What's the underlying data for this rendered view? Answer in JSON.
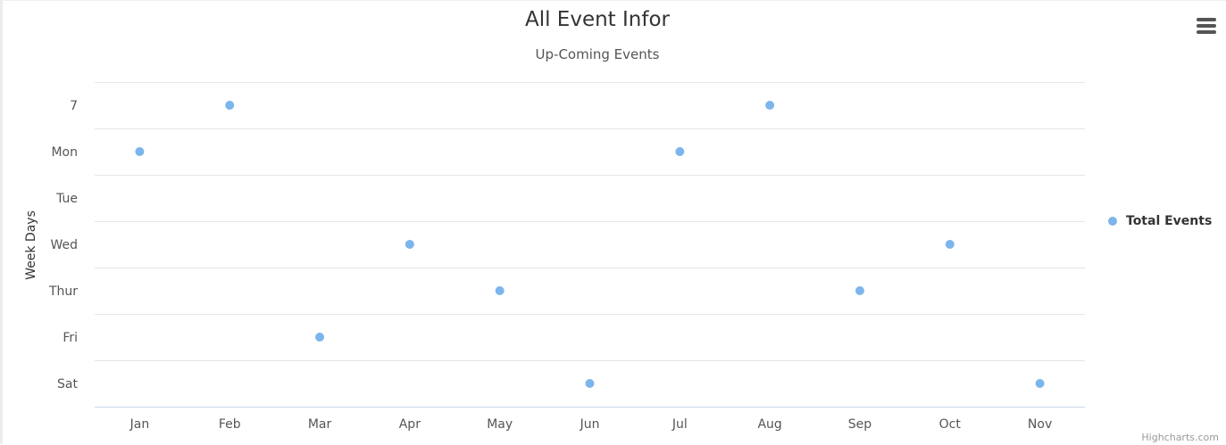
{
  "chart_data": {
    "type": "scatter",
    "title": "All Event Infor",
    "subtitle": "Up-Coming Events",
    "xlabel": "",
    "ylabel": "Week Days",
    "categories": [
      "Jan",
      "Feb",
      "Mar",
      "Apr",
      "May",
      "Jun",
      "Jul",
      "Aug",
      "Sep",
      "Oct",
      "Nov"
    ],
    "y_categories": [
      "7",
      "Mon",
      "Tue",
      "Wed",
      "Thur",
      "Fri",
      "Sat"
    ],
    "series": [
      {
        "name": "Total Events",
        "color": "#7cb5ec",
        "values": [
          "Mon",
          "7",
          "Fri",
          "Wed",
          "Thur",
          "Sat",
          "Mon",
          "7",
          "Thur",
          "Wed",
          "Sat"
        ]
      }
    ],
    "grid": true,
    "legend_position": "right"
  },
  "credits": "Highcharts.com"
}
